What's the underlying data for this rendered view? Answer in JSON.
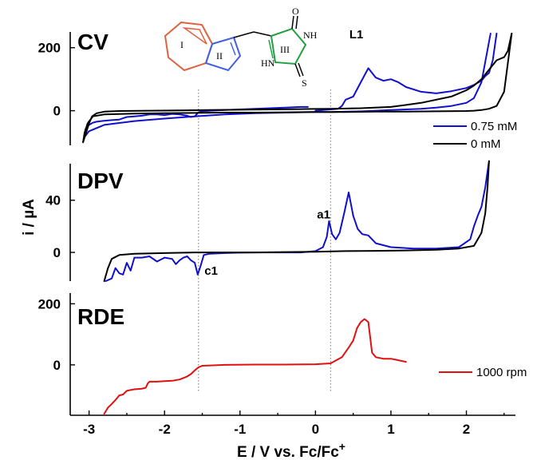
{
  "chart_data": [
    {
      "type": "line",
      "panel_label": "CV",
      "ylim": [
        -110,
        250
      ],
      "yticks": [
        0,
        200
      ],
      "xlim": [
        -3.25,
        2.65
      ],
      "annotations": [
        {
          "text": "L1",
          "x": 0.45,
          "y": 230
        }
      ],
      "legend": {
        "placement": "right",
        "entries": [
          {
            "name": "0.75 mM",
            "color": "#1010cc"
          },
          {
            "name": "0 mM",
            "color": "#000000"
          }
        ]
      },
      "series": [
        {
          "name": "0.75 mM",
          "color": "#1010cc",
          "x": [
            -3.05,
            -3.0,
            -2.95,
            -2.9,
            -2.8,
            -2.7,
            -2.6,
            -2.55,
            -2.5,
            -2.4,
            -2.3,
            -2.2,
            -2.1,
            -2.0,
            -1.9,
            -1.8,
            -1.7,
            -1.65,
            -1.6,
            -1.55,
            -1.5,
            -1.4,
            -1.2,
            -1.0,
            -0.8,
            -0.6,
            -0.4,
            -0.2,
            -0.1
          ],
          "y": [
            -60,
            -45,
            -38,
            -35,
            -32,
            -30,
            -28,
            -24,
            -20,
            -18,
            -16,
            -12,
            -12,
            -14,
            -10,
            -12,
            -16,
            -20,
            -18,
            -5,
            -2,
            0,
            2,
            4,
            6,
            8,
            10,
            12,
            12
          ]
        },
        {
          "name": "0.75 mM",
          "color": "#1010cc",
          "x": [
            0.0,
            0.1,
            0.2,
            0.3,
            0.35,
            0.4,
            0.5,
            0.6,
            0.7,
            0.8,
            0.9,
            1.0,
            1.1,
            1.2,
            1.4,
            1.6,
            1.8,
            2.0,
            2.1,
            2.2,
            2.25,
            2.3,
            2.35,
            2.4
          ],
          "y": [
            0,
            2,
            4,
            6,
            15,
            35,
            45,
            90,
            135,
            105,
            95,
            100,
            90,
            75,
            60,
            55,
            62,
            72,
            82,
            95,
            110,
            120,
            160,
            245
          ]
        },
        {
          "name": "0.75 mM",
          "color": "#1010cc",
          "x": [
            2.32,
            2.2,
            2.1,
            2.0,
            1.8,
            1.6,
            1.4,
            1.2,
            1.0,
            0.8,
            0.6,
            0.4,
            0.2,
            0.0,
            -0.2,
            -0.4,
            -0.8,
            -1.2,
            -1.6,
            -2.0,
            -2.4,
            -2.8,
            -3.0,
            -3.05
          ],
          "y": [
            245,
            90,
            40,
            25,
            15,
            10,
            6,
            4,
            2,
            0,
            -2,
            -3,
            -4,
            -4,
            -5,
            -6,
            -8,
            -12,
            -18,
            -25,
            -33,
            -45,
            -65,
            -80
          ]
        },
        {
          "name": "0 mM",
          "color": "#000000",
          "x": [
            -3.08,
            -3.04,
            -3.0,
            -2.96,
            -2.9,
            -2.8,
            -2.6,
            -2.2,
            -1.8,
            -1.4,
            -1.0,
            -0.6,
            -0.2,
            0.2,
            0.6,
            1.0,
            1.4,
            1.8,
            2.0,
            2.1,
            2.2,
            2.3,
            2.4,
            2.5,
            2.55,
            2.6
          ],
          "y": [
            -100,
            -70,
            -40,
            -18,
            -8,
            -3,
            -1,
            0,
            1,
            2,
            3,
            4,
            5,
            6,
            8,
            12,
            25,
            45,
            65,
            80,
            100,
            130,
            160,
            170,
            190,
            245
          ]
        },
        {
          "name": "0 mM",
          "color": "#000000",
          "x": [
            2.6,
            2.5,
            2.4,
            2.3,
            2.2,
            2.1,
            2.0,
            1.6,
            1.2,
            0.8,
            0.4,
            0.0,
            -0.4,
            -0.8,
            -1.2,
            -1.6,
            -2.0,
            -2.4,
            -2.8,
            -2.95,
            -3.02,
            -3.06,
            -3.08
          ],
          "y": [
            245,
            60,
            15,
            6,
            2,
            0,
            -1,
            -2,
            -3,
            -3,
            -4,
            -4,
            -5,
            -6,
            -6,
            -7,
            -8,
            -9,
            -12,
            -18,
            -40,
            -70,
            -100
          ]
        }
      ]
    },
    {
      "type": "line",
      "panel_label": "DPV",
      "ylim": [
        -22,
        68
      ],
      "yticks": [
        0,
        40
      ],
      "xlim": [
        -3.25,
        2.65
      ],
      "annotations": [
        {
          "text": "a1",
          "x": 0.02,
          "y": 26
        },
        {
          "text": "c1",
          "x": -1.47,
          "y": -17
        }
      ],
      "series": [
        {
          "name": "0.75 mM",
          "color": "#1010cc",
          "x": [
            -2.78,
            -2.7,
            -2.65,
            -2.6,
            -2.55,
            -2.5,
            -2.45,
            -2.4,
            -2.3,
            -2.2,
            -2.1,
            -2.0,
            -1.9,
            -1.85,
            -1.8,
            -1.75,
            -1.7,
            -1.65,
            -1.6,
            -1.56,
            -1.52,
            -1.48,
            -1.4,
            -1.2,
            -1.0,
            -0.8,
            -0.6,
            -0.4,
            -0.2
          ],
          "y": [
            -22,
            -20,
            -12,
            -16,
            -17,
            -8,
            -14,
            -4,
            -4,
            -3,
            -7,
            -4,
            -5,
            -9,
            -6,
            -4,
            -3,
            -6,
            -8,
            -17,
            -10,
            -2,
            -1,
            -0.5,
            -0.2,
            0,
            0,
            0,
            0
          ]
        },
        {
          "name": "0.75 mM",
          "color": "#1010cc",
          "x": [
            -0.2,
            0.0,
            0.1,
            0.15,
            0.18,
            0.22,
            0.27,
            0.32,
            0.38,
            0.44,
            0.5,
            0.56,
            0.62,
            0.7,
            0.8,
            1.0,
            1.3,
            1.6,
            1.9,
            2.05,
            2.1,
            2.15,
            2.2,
            2.25,
            2.3
          ],
          "y": [
            0,
            1,
            4,
            12,
            24,
            14,
            10,
            15,
            30,
            46,
            28,
            18,
            14,
            13,
            7,
            4,
            3,
            3,
            4,
            10,
            20,
            28,
            35,
            50,
            70
          ]
        },
        {
          "name": "0 mM",
          "color": "#000000",
          "x": [
            -2.8,
            -2.75,
            -2.7,
            -2.6,
            -2.4,
            -2.0,
            -1.6,
            -1.2,
            -0.8,
            -0.4,
            0.0,
            0.4,
            0.8,
            1.2,
            1.6,
            1.9,
            2.1,
            2.2,
            2.25,
            2.28,
            2.3
          ],
          "y": [
            -22,
            -12,
            -5,
            -2,
            -1,
            -0.5,
            0,
            0,
            0,
            0.3,
            0.5,
            1,
            1.2,
            1.5,
            2,
            3,
            5,
            15,
            30,
            50,
            70
          ]
        }
      ]
    },
    {
      "type": "line",
      "panel_label": "RDE",
      "ylim": [
        -165,
        235
      ],
      "yticks": [
        0,
        200
      ],
      "xlim": [
        -3.25,
        2.65
      ],
      "legend": {
        "placement": "right",
        "entries": [
          {
            "name": "1000 rpm",
            "color": "#e01010"
          }
        ]
      },
      "series": [
        {
          "name": "1000 rpm",
          "color": "#e01010",
          "x": [
            -2.8,
            -2.75,
            -2.7,
            -2.65,
            -2.6,
            -2.55,
            -2.5,
            -2.45,
            -2.4,
            -2.3,
            -2.25,
            -2.22,
            -2.2,
            -2.1,
            -2.0,
            -1.9,
            -1.8,
            -1.7,
            -1.65,
            -1.6,
            -1.55,
            -1.5,
            -1.2,
            -0.8,
            -0.4,
            0.0,
            0.2,
            0.35,
            0.45,
            0.5,
            0.55,
            0.6,
            0.65,
            0.7,
            0.72,
            0.75,
            0.8,
            0.9,
            1.0,
            1.1,
            1.2
          ],
          "y": [
            -160,
            -140,
            -128,
            -115,
            -100,
            -97,
            -85,
            -82,
            -80,
            -78,
            -75,
            -60,
            -55,
            -55,
            -53,
            -52,
            -48,
            -38,
            -30,
            -18,
            -8,
            -3,
            0,
            1,
            1,
            2,
            5,
            25,
            60,
            80,
            120,
            140,
            150,
            140,
            100,
            40,
            25,
            20,
            20,
            15,
            10
          ]
        }
      ]
    }
  ],
  "x_axis": {
    "label_main": "E / V vs. Fc/Fc",
    "label_sup": "+",
    "ticks": [
      -3,
      -2,
      -1,
      0,
      1,
      2
    ],
    "tick_labels": [
      "-3",
      "-2",
      "-1",
      "0",
      "1",
      "2"
    ]
  },
  "y_axis_label": "i / µA",
  "guide_lines_x": [
    -1.55,
    0.2
  ],
  "molecule": {
    "ring_labels": [
      "I",
      "II",
      "III"
    ],
    "atom_labels": {
      "o": "O",
      "nh": "NH",
      "hn": "HN",
      "s": "S"
    },
    "ring_colors": {
      "ring1": "#e06040",
      "ring2": "#4060e0",
      "ring3": "#20a040"
    }
  }
}
